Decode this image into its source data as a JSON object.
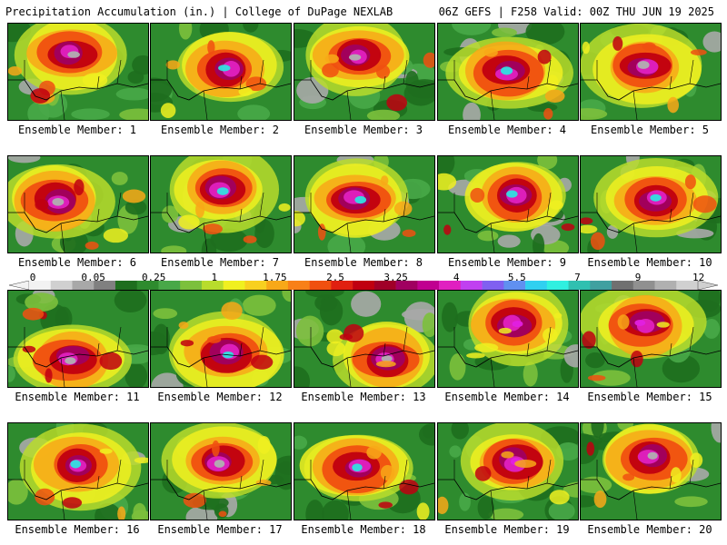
{
  "header": {
    "title": "Precipitation Accumulation (in.) | College of DuPage NEXLAB",
    "run_info": "06Z GEFS | F258 Valid: 00Z THU JUN 19 2025"
  },
  "members": [
    {
      "label": "Ensemble Member: 1",
      "core": [
        0.45,
        0.3
      ],
      "peak": "#b0b0b0"
    },
    {
      "label": "Ensemble Member: 2",
      "core": [
        0.55,
        0.45
      ],
      "peak": "#30e0e0"
    },
    {
      "label": "Ensemble Member: 3",
      "core": [
        0.45,
        0.35
      ],
      "peak": "#b0b0b0"
    },
    {
      "label": "Ensemble Member: 4",
      "core": [
        0.5,
        0.5
      ],
      "peak": "#30e0e0"
    },
    {
      "label": "Ensemble Member: 5",
      "core": [
        0.45,
        0.45
      ],
      "peak": "#b0b0b0"
    },
    {
      "label": "Ensemble Member: 6",
      "core": [
        0.35,
        0.45
      ],
      "peak": "#b0b0b0"
    },
    {
      "label": "Ensemble Member: 7",
      "core": [
        0.5,
        0.35
      ],
      "peak": "#30e0e0"
    },
    {
      "label": "Ensemble Member: 8",
      "core": [
        0.45,
        0.45
      ],
      "peak": "#30e0e0"
    },
    {
      "label": "Ensemble Member: 9",
      "core": [
        0.55,
        0.4
      ],
      "peak": "#30e0e0"
    },
    {
      "label": "Ensemble Member: 10",
      "core": [
        0.55,
        0.45
      ],
      "peak": "#30e0e0"
    },
    {
      "label": "Ensemble Member: 11",
      "core": [
        0.45,
        0.7
      ],
      "peak": "#b0b0b0"
    },
    {
      "label": "Ensemble Member: 12",
      "core": [
        0.55,
        0.65
      ],
      "peak": "#30e0e0"
    },
    {
      "label": "Ensemble Member: 13",
      "core": [
        0.65,
        0.7
      ],
      "peak": "#b0b0b0"
    },
    {
      "label": "Ensemble Member: 14",
      "core": [
        0.55,
        0.35
      ],
      "peak": "#e020e0"
    },
    {
      "label": "Ensemble Member: 15",
      "core": [
        0.45,
        0.35
      ],
      "peak": "#e020e0"
    },
    {
      "label": "Ensemble Member: 16",
      "core": [
        0.5,
        0.45
      ],
      "peak": "#30e0e0"
    },
    {
      "label": "Ensemble Member: 17",
      "core": [
        0.5,
        0.4
      ],
      "peak": "#b0b0b0"
    },
    {
      "label": "Ensemble Member: 18",
      "core": [
        0.45,
        0.45
      ],
      "peak": "#30e0e0"
    },
    {
      "label": "Ensemble Member: 19",
      "core": [
        0.55,
        0.4
      ],
      "peak": "#e020e0"
    },
    {
      "label": "Ensemble Member: 20",
      "core": [
        0.5,
        0.35
      ],
      "peak": "#b0b0b0"
    }
  ],
  "colorbar": {
    "tick_labels": [
      "0",
      "0.05",
      "0.25",
      "1",
      "1.75",
      "2.5",
      "3.25",
      "4",
      "5.5",
      "7",
      "9",
      "12"
    ],
    "colors": [
      "#f2f2f2",
      "#d0d0d0",
      "#a8a8a8",
      "#808080",
      "#1e6e1e",
      "#2e8b2e",
      "#48a848",
      "#7cc03c",
      "#b8dc2c",
      "#f0f020",
      "#f8d020",
      "#f8a818",
      "#f88018",
      "#f05010",
      "#e02010",
      "#c00010",
      "#a00028",
      "#a00060",
      "#c00090",
      "#e020c0",
      "#c040f0",
      "#8060f0",
      "#6090f0",
      "#30d0f0",
      "#30f0e0",
      "#30c0b0",
      "#40a0a0",
      "#707070",
      "#909090",
      "#b0b0b0",
      "#d0d0d0"
    ]
  }
}
